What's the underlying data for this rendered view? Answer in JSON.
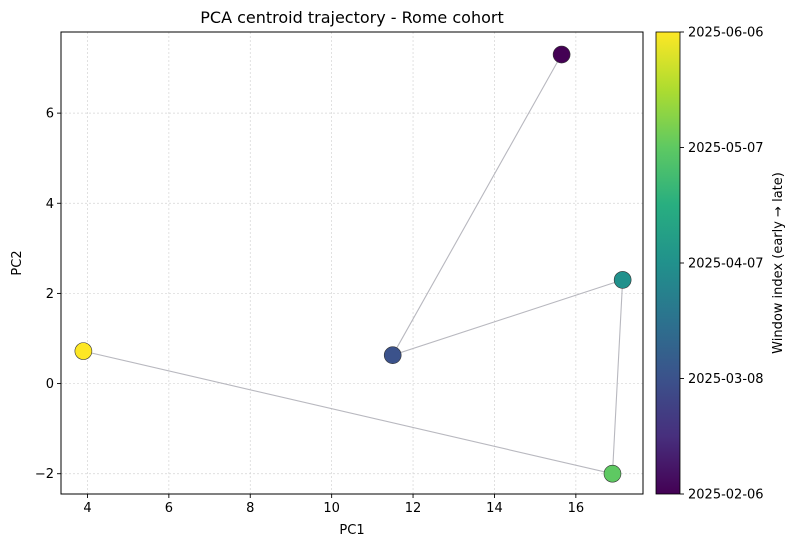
{
  "chart_data": {
    "type": "scatter",
    "title": "PCA centroid trajectory - Rome cohort",
    "xlabel": "PC1",
    "ylabel": "PC2",
    "xlim": [
      3.35,
      17.65
    ],
    "ylim": [
      -2.45,
      7.8
    ],
    "xticks": [
      4,
      6,
      8,
      10,
      12,
      14,
      16
    ],
    "yticks": [
      -2,
      0,
      2,
      4,
      6
    ],
    "grid": true,
    "colormap": "viridis",
    "colorbar": {
      "label": "Window index (early → late)",
      "tick_labels": [
        "2025-06-06",
        "2025-05-07",
        "2025-04-07",
        "2025-03-08",
        "2025-02-06"
      ],
      "tick_fractions": [
        1.0,
        0.75,
        0.5,
        0.25,
        0.0
      ]
    },
    "points": [
      {
        "x": 15.65,
        "y": 7.3,
        "color_fraction": 0.0,
        "color": "#440154"
      },
      {
        "x": 11.5,
        "y": 0.63,
        "color_fraction": 0.25,
        "color": "#3b528b"
      },
      {
        "x": 17.15,
        "y": 2.3,
        "color_fraction": 0.5,
        "color": "#21918c"
      },
      {
        "x": 16.9,
        "y": -2.0,
        "color_fraction": 0.75,
        "color": "#5ec962"
      },
      {
        "x": 3.9,
        "y": 0.72,
        "color_fraction": 1.0,
        "color": "#fde725"
      }
    ],
    "line_color": "#b8b8bf"
  }
}
